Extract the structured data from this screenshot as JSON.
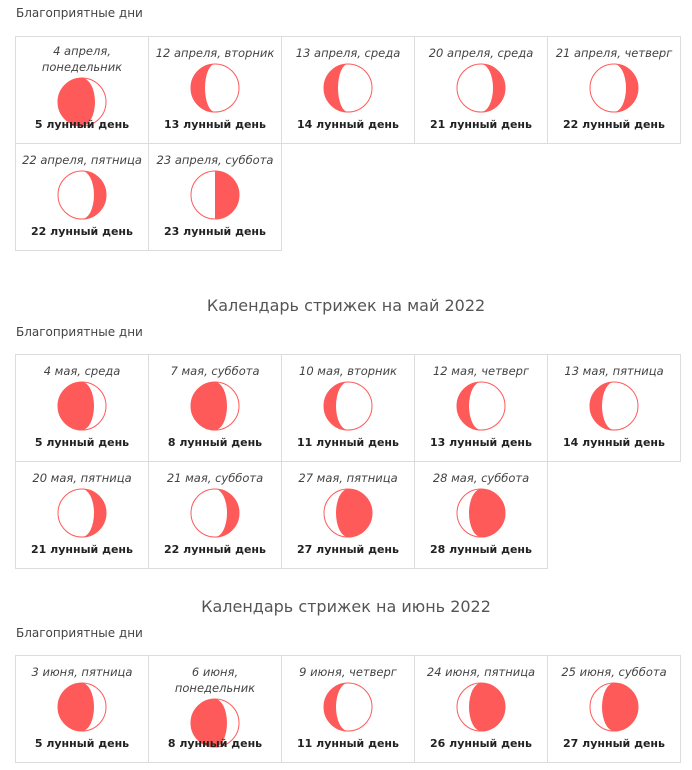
{
  "colors": {
    "moon_fill": "#ff5a5a",
    "moon_outline": "#ff5a5a",
    "cell_border": "#dcdcdc"
  },
  "sections": [
    {
      "title": "",
      "label": "Благоприятные дни",
      "days": [
        {
          "date": "4 апреля, понедельник",
          "lunar_day": "5 лунный день",
          "phase": "waxing-crescent-large",
          "lit_fraction": 0.7
        },
        {
          "date": "12 апреля, вторник",
          "lunar_day": "13 лунный день",
          "phase": "waning-left",
          "lit_fraction": 0.3
        },
        {
          "date": "13 апреля, среда",
          "lunar_day": "14 лунный день",
          "phase": "waning-left",
          "lit_fraction": 0.25
        },
        {
          "date": "20 апреля, среда",
          "lunar_day": "21 лунный день",
          "phase": "right-crescent",
          "lit_fraction": 0.2
        },
        {
          "date": "21 апреля, четверг",
          "lunar_day": "22 лунный день",
          "phase": "right-crescent",
          "lit_fraction": 0.28
        },
        {
          "date": "22 апреля, пятница",
          "lunar_day": "22 лунный день",
          "phase": "right-crescent",
          "lit_fraction": 0.3
        },
        {
          "date": "23 апреля, суббота",
          "lunar_day": "23 лунный день",
          "phase": "right-half",
          "lit_fraction": 0.5
        }
      ]
    },
    {
      "title": "Календарь стрижек на май 2022",
      "label": "Благоприятные дни",
      "days": [
        {
          "date": "4 мая, среда",
          "lunar_day": "5 лунный день",
          "phase": "left-large",
          "lit_fraction": 0.7
        },
        {
          "date": "7 мая, суббота",
          "lunar_day": "8 лунный день",
          "phase": "left-large",
          "lit_fraction": 0.75
        },
        {
          "date": "10 мая, вторник",
          "lunar_day": "11 лунный день",
          "phase": "left-crescent",
          "lit_fraction": 0.3
        },
        {
          "date": "12 мая, четверг",
          "lunar_day": "13 лунный день",
          "phase": "left-crescent",
          "lit_fraction": 0.25
        },
        {
          "date": "13 мая, пятница",
          "lunar_day": "14 лунный день",
          "phase": "left-crescent",
          "lit_fraction": 0.2
        },
        {
          "date": "20 мая, пятница",
          "lunar_day": "21 лунный день",
          "phase": "right-crescent",
          "lit_fraction": 0.3
        },
        {
          "date": "21 мая, суббота",
          "lunar_day": "22 лунный день",
          "phase": "right-crescent",
          "lit_fraction": 0.28
        },
        {
          "date": "27 мая, пятница",
          "lunar_day": "27 лунный день",
          "phase": "right-large",
          "lit_fraction": 0.75
        },
        {
          "date": "28 мая, суббота",
          "lunar_day": "28 лунный день",
          "phase": "right-large",
          "lit_fraction": 0.8
        }
      ]
    },
    {
      "title": "Календарь стрижек на июнь 2022",
      "label": "Благоприятные дни",
      "days": [
        {
          "date": "3 июня, пятница",
          "lunar_day": "5 лунный день",
          "phase": "left-large",
          "lit_fraction": 0.78
        },
        {
          "date": "6 июня, понедельник",
          "lunar_day": "8 лунный день",
          "phase": "left-large",
          "lit_fraction": 0.75
        },
        {
          "date": "9 июня, четверг",
          "lunar_day": "11 лунный день",
          "phase": "left-crescent",
          "lit_fraction": 0.3
        },
        {
          "date": "24 июня, пятница",
          "lunar_day": "26 лунный день",
          "phase": "right-large",
          "lit_fraction": 0.72
        },
        {
          "date": "25 июня, суббота",
          "lunar_day": "27 лунный день",
          "phase": "right-large",
          "lit_fraction": 0.75
        }
      ]
    }
  ]
}
